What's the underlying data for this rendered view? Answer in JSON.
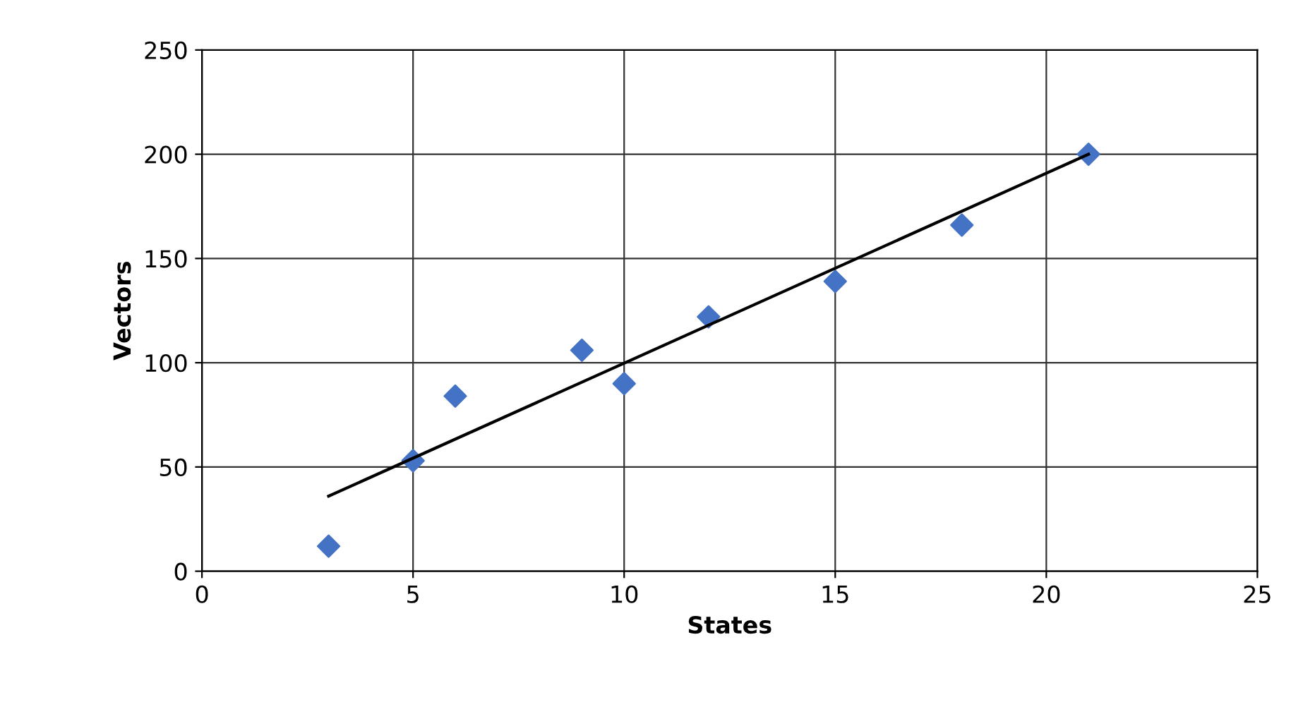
{
  "chart_data": {
    "type": "scatter",
    "xlabel": "States",
    "ylabel": "Vectors",
    "xlim": [
      0,
      25
    ],
    "xticks": [
      0,
      5,
      10,
      15,
      20,
      25
    ],
    "ylim": [
      0,
      250
    ],
    "yticks": [
      0,
      50,
      100,
      150,
      200,
      250
    ],
    "grid": true,
    "series": [
      {
        "color": "#4472c4",
        "marker": "diamond",
        "x": [
          3,
          5,
          6,
          9,
          10,
          12,
          15,
          18,
          21
        ],
        "values": [
          12,
          53,
          84,
          106,
          90,
          122,
          139,
          166,
          200
        ]
      },
      {
        "type": "line",
        "marker": "none",
        "color": "#000000",
        "x": [
          3,
          21
        ],
        "values": [
          36,
          200
        ]
      }
    ]
  }
}
